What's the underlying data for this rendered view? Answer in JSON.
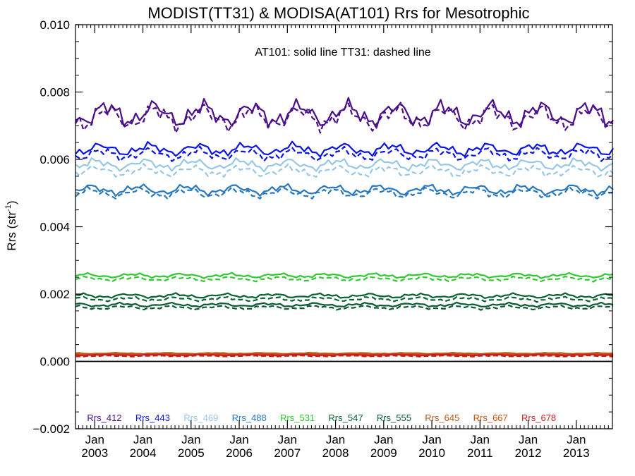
{
  "chart_data": {
    "type": "line",
    "title": "MODIST(TT31) & MODISA(AT101)  Rrs for Mesotrophic",
    "ylabel_main": "Rrs (str",
    "ylabel_sup": "-1",
    "ylabel_close": ")",
    "annotation": "AT101: solid line    TT31: dashed line",
    "ylim": [
      -0.002,
      0.01
    ],
    "yticks": [
      "−0.002",
      "0.000",
      "0.002",
      "0.004",
      "0.006",
      "0.008",
      "0.010"
    ],
    "ytick_values": [
      -0.002,
      0.0,
      0.002,
      0.004,
      0.006,
      0.008,
      0.01
    ],
    "xlim": [
      2002.6,
      2013.75
    ],
    "xtick_month": "Jan",
    "xticks": [
      "2003",
      "2004",
      "2005",
      "2006",
      "2007",
      "2008",
      "2009",
      "2010",
      "2011",
      "2012",
      "2013"
    ],
    "xtick_values": [
      2003,
      2004,
      2005,
      2006,
      2007,
      2008,
      2009,
      2010,
      2011,
      2012,
      2013
    ],
    "zero_line": 0.0,
    "series": [
      {
        "name": "Rrs_412",
        "color": "#4b0f8c",
        "solid_base": 0.00735,
        "dashed_base": 0.00725,
        "amplitude": 0.00045
      },
      {
        "name": "Rrs_443",
        "color": "#0a14e6",
        "solid_base": 0.0063,
        "dashed_base": 0.00615,
        "amplitude": 0.00022
      },
      {
        "name": "Rrs_469",
        "color": "#96c8e6",
        "solid_base": 0.00585,
        "dashed_base": 0.00565,
        "amplitude": 0.0002
      },
      {
        "name": "Rrs_488",
        "color": "#2878be",
        "solid_base": 0.0051,
        "dashed_base": 0.005,
        "amplitude": 0.00018
      },
      {
        "name": "Rrs_531",
        "color": "#32c832",
        "solid_base": 0.00255,
        "dashed_base": 0.00245,
        "amplitude": 8e-05
      },
      {
        "name": "Rrs_547",
        "color": "#0a6432",
        "solid_base": 0.00195,
        "dashed_base": 0.00185,
        "amplitude": 8e-05
      },
      {
        "name": "Rrs_555",
        "color": "#0a5a32",
        "solid_base": 0.00168,
        "dashed_base": 0.0016,
        "amplitude": 7e-05
      },
      {
        "name": "Rrs_645",
        "color": "#b45a1e",
        "solid_base": 0.00024,
        "dashed_base": 0.0002,
        "amplitude": 2e-05
      },
      {
        "name": "Rrs_667",
        "color": "#d2500a",
        "solid_base": 0.00021,
        "dashed_base": 0.00018,
        "amplitude": 2e-05
      },
      {
        "name": "Rrs_678",
        "color": "#c81e1e",
        "solid_base": 0.00019,
        "dashed_base": 0.00016,
        "amplitude": 2e-05
      }
    ],
    "grid": false,
    "legend_placement": "bottom"
  }
}
